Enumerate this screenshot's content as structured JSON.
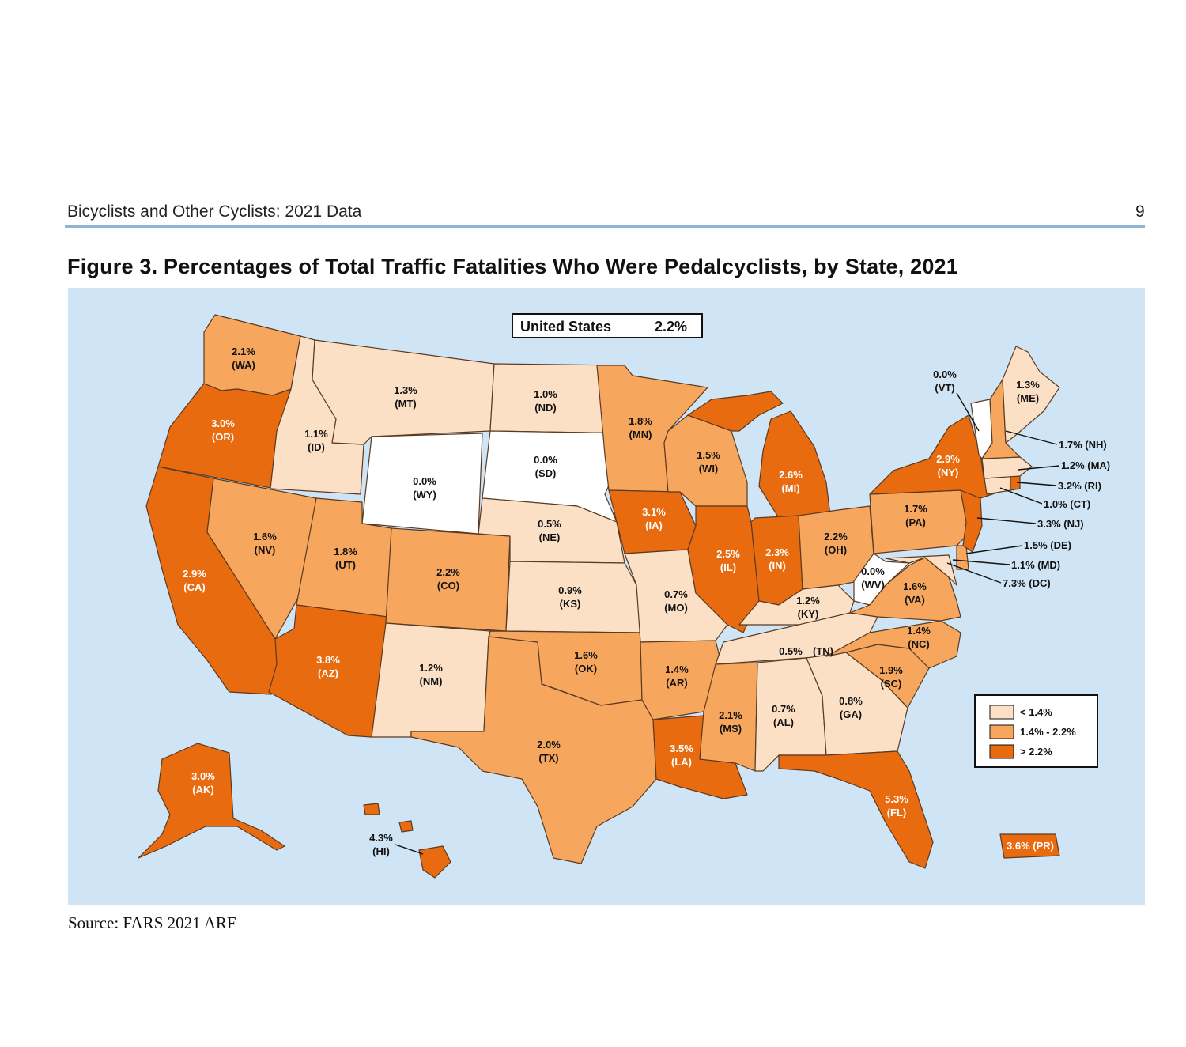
{
  "header": {
    "title": "Bicyclists and Other Cyclists: 2021 Data",
    "page_number": "9"
  },
  "figure": {
    "title": "Figure 3. Percentages of Total Traffic Fatalities Who Were Pedalcyclists, by State, 2021",
    "source": "Source: FARS 2021 ARF"
  },
  "national": {
    "label": "United States",
    "value": "2.2%"
  },
  "colors": {
    "ocean": "#cfe5f5",
    "low": "#fbe0c6",
    "mid": "#f7a75d",
    "high": "#e96b10",
    "zero": "#ffffff",
    "border": "#5a3a22"
  },
  "legend": {
    "items": [
      {
        "label": "< 1.4%",
        "color": "#fbe0c6"
      },
      {
        "label": "1.4% - 2.2%",
        "color": "#f7a75d"
      },
      {
        "label": "> 2.2%",
        "color": "#e96b10"
      }
    ]
  },
  "states": {
    "WA": {
      "value": "2.1%",
      "abbr": "(WA)"
    },
    "OR": {
      "value": "3.0%",
      "abbr": "(OR)"
    },
    "CA": {
      "value": "2.9%",
      "abbr": "(CA)"
    },
    "ID": {
      "value": "1.1%",
      "abbr": "(ID)"
    },
    "NV": {
      "value": "1.6%",
      "abbr": "(NV)"
    },
    "MT": {
      "value": "1.3%",
      "abbr": "(MT)"
    },
    "WY": {
      "value": "0.0%",
      "abbr": "(WY)"
    },
    "UT": {
      "value": "1.8%",
      "abbr": "(UT)"
    },
    "AZ": {
      "value": "3.8%",
      "abbr": "(AZ)"
    },
    "CO": {
      "value": "2.2%",
      "abbr": "(CO)"
    },
    "NM": {
      "value": "1.2%",
      "abbr": "(NM)"
    },
    "ND": {
      "value": "1.0%",
      "abbr": "(ND)"
    },
    "SD": {
      "value": "0.0%",
      "abbr": "(SD)"
    },
    "NE": {
      "value": "0.5%",
      "abbr": "(NE)"
    },
    "KS": {
      "value": "0.9%",
      "abbr": "(KS)"
    },
    "OK": {
      "value": "1.6%",
      "abbr": "(OK)"
    },
    "TX": {
      "value": "2.0%",
      "abbr": "(TX)"
    },
    "MN": {
      "value": "1.8%",
      "abbr": "(MN)"
    },
    "IA": {
      "value": "3.1%",
      "abbr": "(IA)"
    },
    "MO": {
      "value": "0.7%",
      "abbr": "(MO)"
    },
    "AR": {
      "value": "1.4%",
      "abbr": "(AR)"
    },
    "LA": {
      "value": "3.5%",
      "abbr": "(LA)"
    },
    "WI": {
      "value": "1.5%",
      "abbr": "(WI)"
    },
    "IL": {
      "value": "2.5%",
      "abbr": "(IL)"
    },
    "MI": {
      "value": "2.6%",
      "abbr": "(MI)"
    },
    "IN": {
      "value": "2.3%",
      "abbr": "(IN)"
    },
    "OH": {
      "value": "2.2%",
      "abbr": "(OH)"
    },
    "KY": {
      "value": "1.2%",
      "abbr": "(KY)"
    },
    "TN": {
      "value": "0.5%",
      "abbr": "(TN)"
    },
    "MS": {
      "value": "2.1%",
      "abbr": "(MS)"
    },
    "AL": {
      "value": "0.7%",
      "abbr": "(AL)"
    },
    "GA": {
      "value": "0.8%",
      "abbr": "(GA)"
    },
    "FL": {
      "value": "5.3%",
      "abbr": "(FL)"
    },
    "SC": {
      "value": "1.9%",
      "abbr": "(SC)"
    },
    "NC": {
      "value": "1.4%",
      "abbr": "(NC)"
    },
    "VA": {
      "value": "1.6%",
      "abbr": "(VA)"
    },
    "WV": {
      "value": "0.0%",
      "abbr": "(WV)"
    },
    "PA": {
      "value": "1.7%",
      "abbr": "(PA)"
    },
    "NY": {
      "value": "2.9%",
      "abbr": "(NY)"
    },
    "VT": {
      "value": "0.0%",
      "abbr": "(VT)"
    },
    "ME": {
      "value": "1.3%",
      "abbr": "(ME)"
    },
    "AK": {
      "value": "3.0%",
      "abbr": "(AK)"
    },
    "HI": {
      "value": "4.3%",
      "abbr": "(HI)"
    },
    "PR": {
      "text": "3.6% (PR)"
    }
  },
  "callouts": {
    "NH": "1.7% (NH)",
    "MA": "1.2% (MA)",
    "RI": "3.2% (RI)",
    "CT": "1.0% (CT)",
    "NJ": "3.3% (NJ)",
    "DE": "1.5% (DE)",
    "MD": "1.1% (MD)",
    "DC": "7.3% (DC)"
  }
}
